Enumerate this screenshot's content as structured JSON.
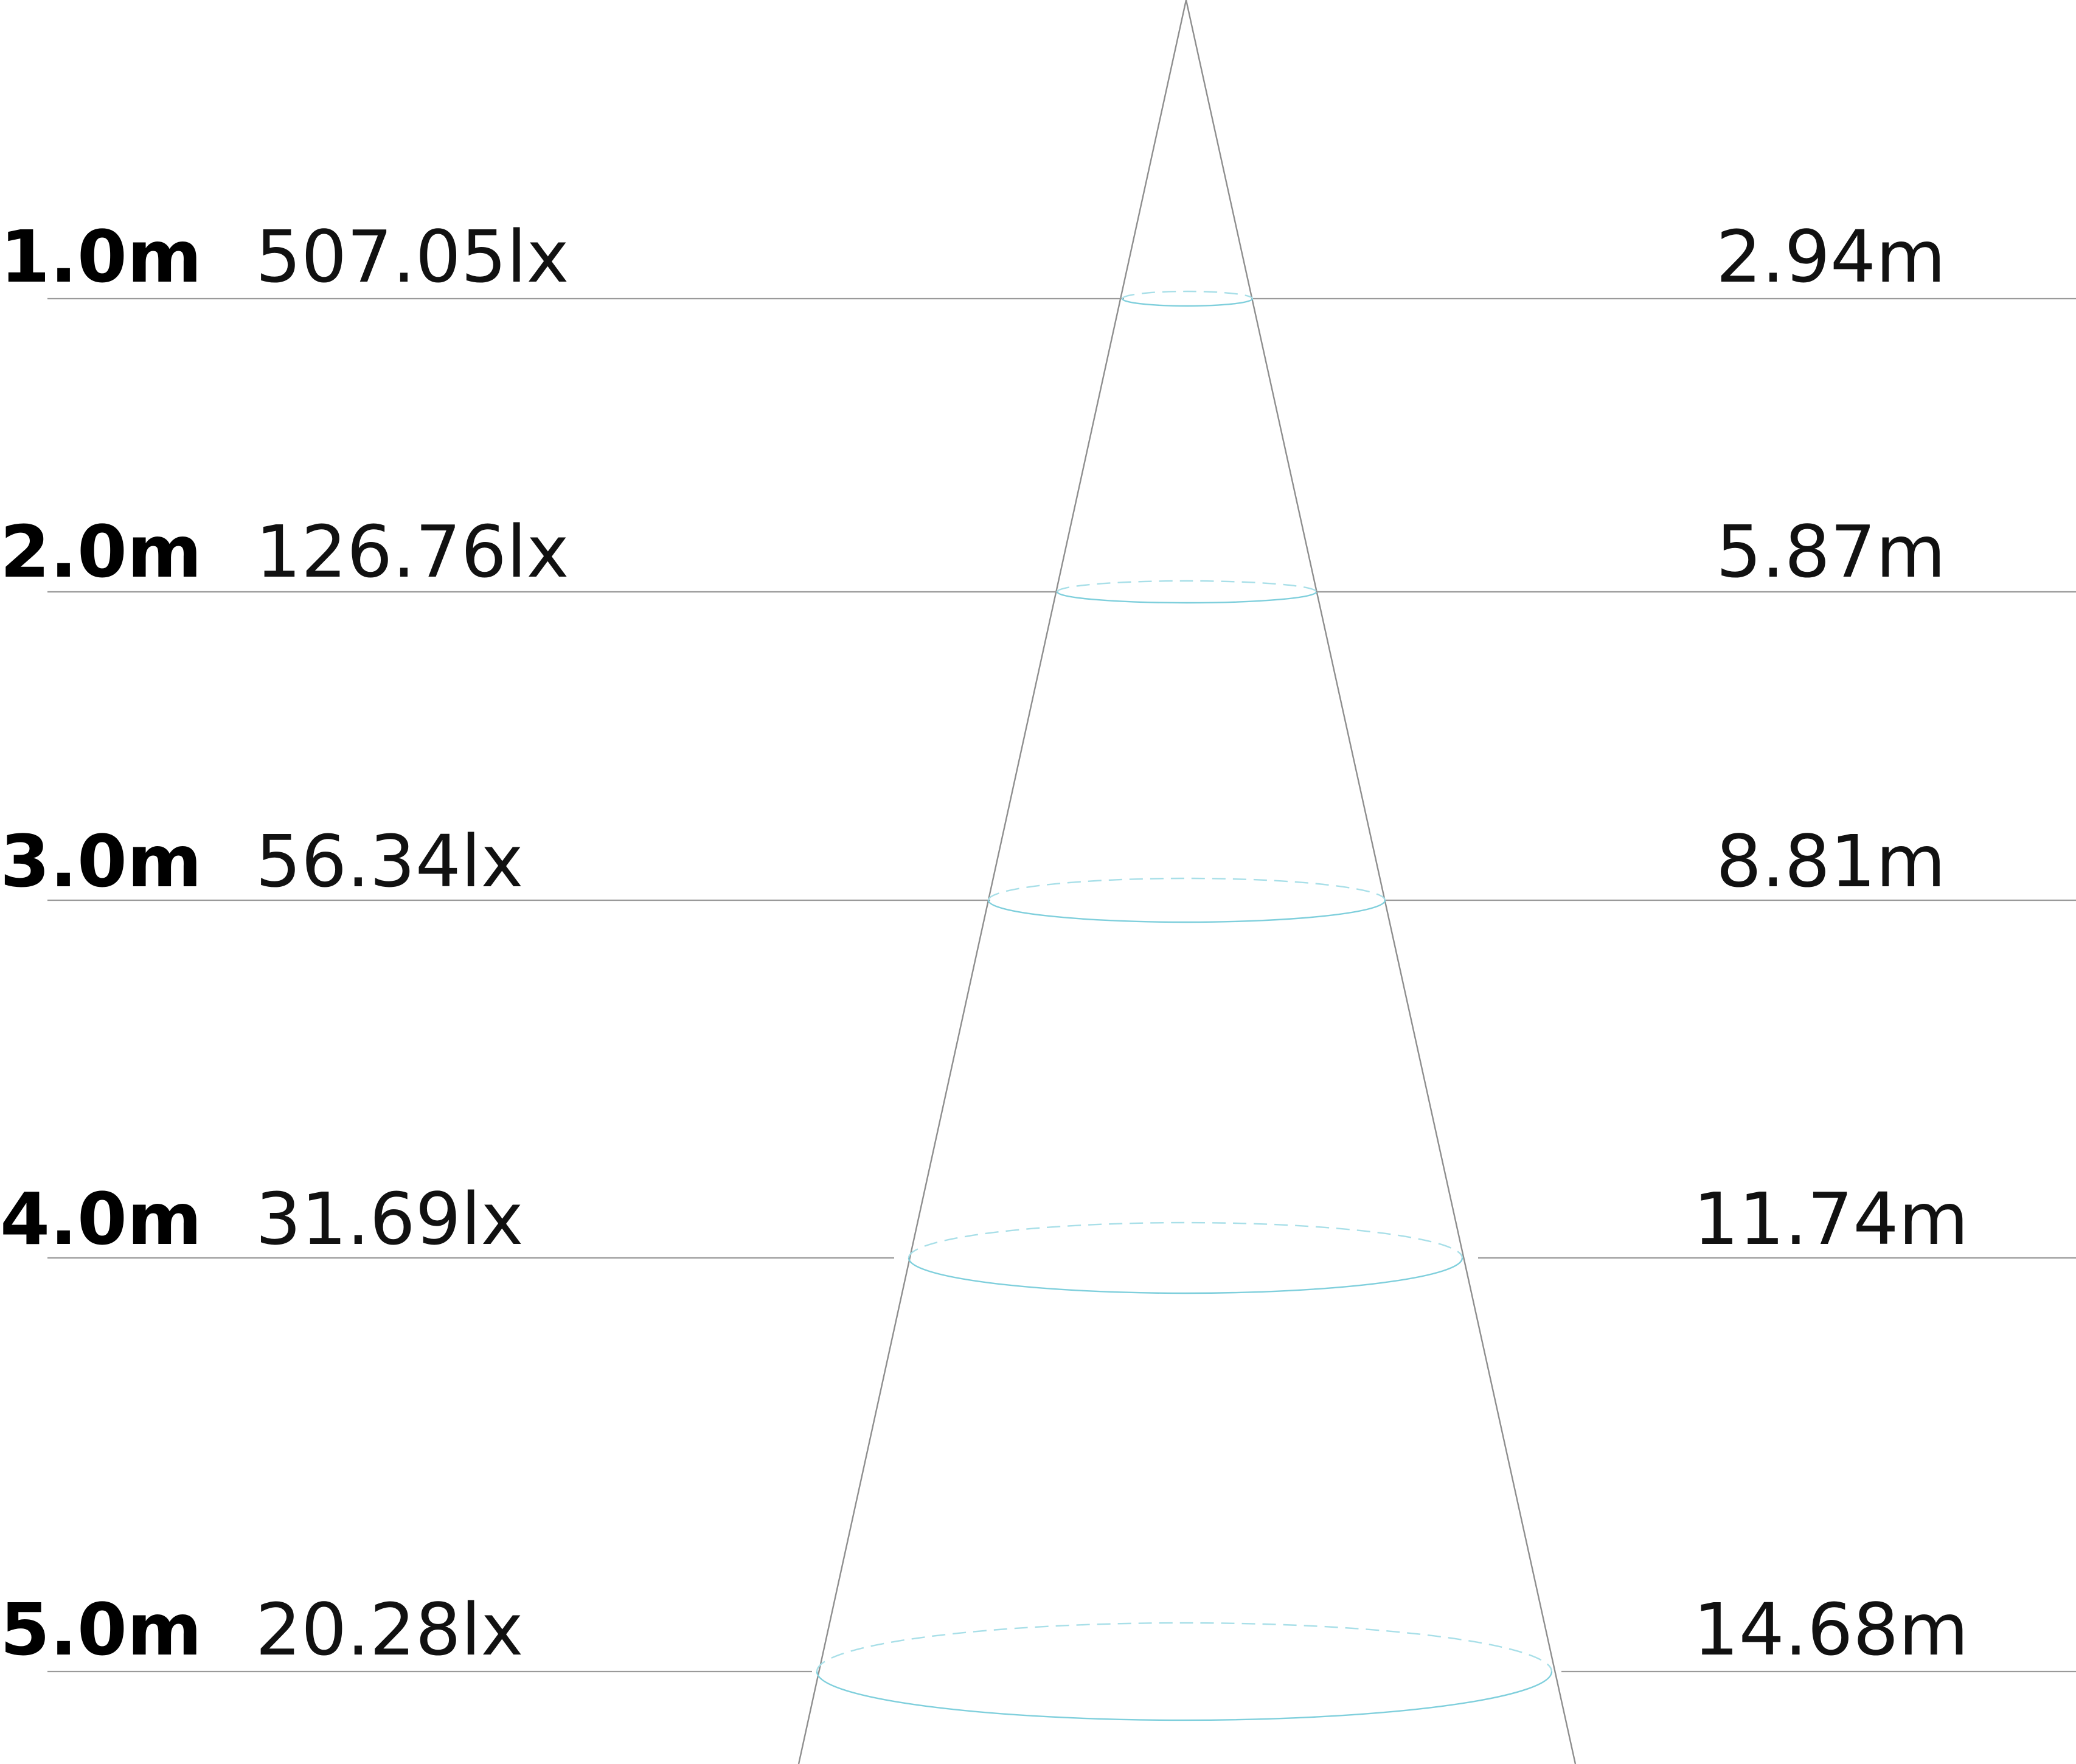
{
  "colors": {
    "beam_edge": "#8e8e8e",
    "level_line": "#9a9a9a",
    "ellipse": "#7fcfdc",
    "text": "#000000"
  },
  "rows": [
    {
      "distance": "1.0m",
      "illuminance": "507.05lx",
      "beam_diameter": "2.94m"
    },
    {
      "distance": "2.0m",
      "illuminance": "126.76lx",
      "beam_diameter": "5.87m"
    },
    {
      "distance": "3.0m",
      "illuminance": "56.34lx",
      "beam_diameter": "8.81m"
    },
    {
      "distance": "4.0m",
      "illuminance": "31.69lx",
      "beam_diameter": "11.74m"
    },
    {
      "distance": "5.0m",
      "illuminance": "20.28lx",
      "beam_diameter": "14.68m"
    }
  ]
}
